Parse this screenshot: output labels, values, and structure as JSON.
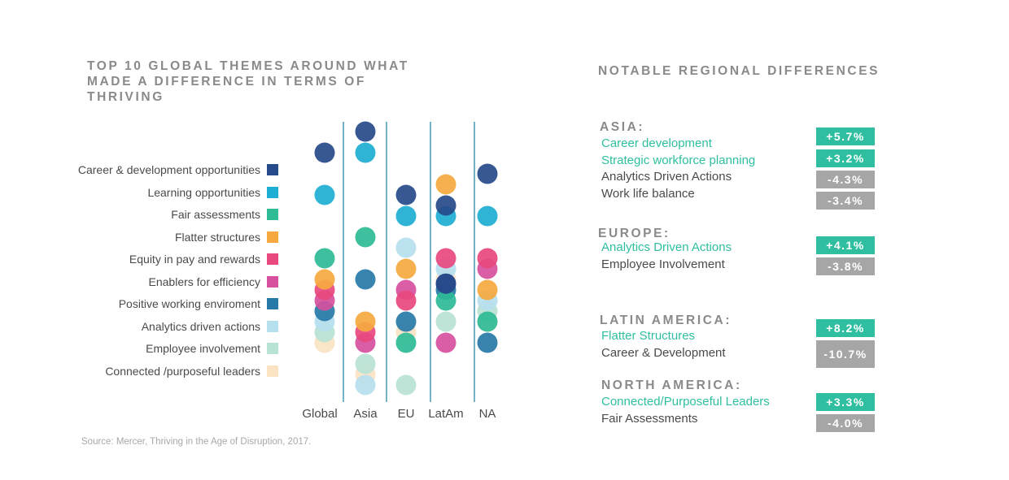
{
  "left_title": "TOP 10 GLOBAL THEMES AROUND WHAT MADE A DIFFERENCE IN TERMS OF THRIVING",
  "right_title": "NOTABLE REGIONAL DIFFERENCES",
  "source": "Source: Mercer, Thriving in the Age of Disruption, 2017.",
  "colors": {
    "positive": "#2fbfa0",
    "negative": "#a6a6a6",
    "region_title": "#8a8a8a"
  },
  "chart_data": {
    "type": "scatter",
    "title": "TOP 10 GLOBAL THEMES AROUND WHAT MADE A DIFFERENCE IN TERMS OF THRIVING",
    "categories": [
      "Global",
      "Asia",
      "EU",
      "LatAm",
      "NA"
    ],
    "ylim": [
      1,
      12
    ],
    "legend_position": "left",
    "series": [
      {
        "name": "Career & development opportunities",
        "color": "#274a8a",
        "ranks": [
          1,
          0,
          3,
          3.5,
          2
        ]
      },
      {
        "name": "Learning opportunities",
        "color": "#1eaed3",
        "ranks": [
          3,
          1,
          4,
          4,
          4
        ]
      },
      {
        "name": "Fair assessments",
        "color": "#2ebb96",
        "ranks": [
          6,
          5,
          10,
          8,
          9
        ]
      },
      {
        "name": "Flatter structures",
        "color": "#f5a93e",
        "ranks": [
          7,
          9,
          6.5,
          2.5,
          7.5
        ]
      },
      {
        "name": "Equity in pay and rewards",
        "color": "#e8487e",
        "ranks": [
          7.5,
          9.5,
          8,
          6,
          6
        ]
      },
      {
        "name": "Enablers for efficiency",
        "color": "#d6509e",
        "ranks": [
          8,
          10,
          7.5,
          10,
          6.5
        ]
      },
      {
        "name": "Positive working enviroment",
        "color": "#2779a8",
        "ranks": [
          8.5,
          7,
          9,
          7.5,
          10
        ]
      },
      {
        "name": "Analytics driven actions",
        "color": "#b6e0ee",
        "ranks": [
          9,
          12,
          5.5,
          6.5,
          8
        ]
      },
      {
        "name": "Employee involvement",
        "color": "#b8e2d4",
        "ranks": [
          9.5,
          11,
          12,
          9,
          8.5
        ]
      },
      {
        "name": "Connected /purposeful leaders",
        "color": "#fbe3c3",
        "ranks": [
          10,
          11.5,
          9.5,
          7,
          9
        ]
      }
    ],
    "extra_points": [
      {
        "category": "LatAm",
        "color": "#274a8a",
        "rank": 7.2
      }
    ]
  },
  "regions": [
    {
      "title": "ASIA:",
      "items": [
        {
          "label": "Career development",
          "value": "+5.7%",
          "type": "positive"
        },
        {
          "label": "Strategic workforce planning",
          "value": "+3.2%",
          "type": "positive"
        },
        {
          "label": "Analytics Driven Actions",
          "value": "-4.3%",
          "type": "negative"
        },
        {
          "label": "Work life balance",
          "value": "-3.4%",
          "type": "negative"
        }
      ]
    },
    {
      "title": "EUROPE:",
      "items": [
        {
          "label": "Analytics Driven Actions",
          "value": "+4.1%",
          "type": "positive"
        },
        {
          "label": "Employee Involvement",
          "value": "-3.8%",
          "type": "negative"
        }
      ]
    },
    {
      "title": "LATIN AMERICA:",
      "items": [
        {
          "label": "Flatter Structures",
          "value": "+8.2%",
          "type": "positive"
        },
        {
          "label": "Career & Development",
          "value": "-10.7%",
          "type": "negative"
        }
      ]
    },
    {
      "title": "NORTH AMERICA:",
      "items": [
        {
          "label": "Connected/Purposeful Leaders",
          "value": "+3.3%",
          "type": "positive"
        },
        {
          "label": "Fair Assessments",
          "value": "-4.0%",
          "type": "negative"
        }
      ]
    }
  ]
}
